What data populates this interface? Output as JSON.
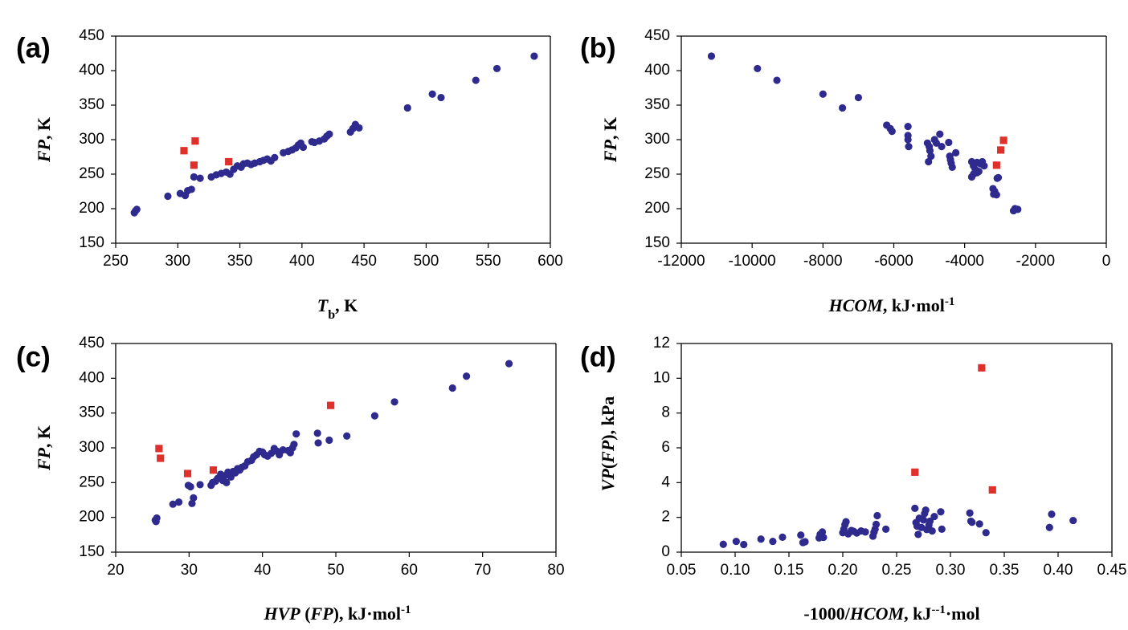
{
  "colors": {
    "circle": "#2e2a8e",
    "square": "#e0302b",
    "axis": "#000000"
  },
  "chart_data": [
    {
      "type": "scatter",
      "panel_label": "(a)",
      "xlabel": {
        "main": "T",
        "sub": "b",
        "rest": ", K"
      },
      "ylabel": {
        "italic": "FP",
        "rest": ", K"
      },
      "xlim": [
        250,
        600
      ],
      "ylim": [
        150,
        450
      ],
      "xticks": [
        "250",
        "300",
        "350",
        "400",
        "450",
        "500",
        "550",
        "600"
      ],
      "yticks": [
        "150",
        "200",
        "250",
        "300",
        "350",
        "400",
        "450"
      ],
      "series": [
        {
          "marker": "circle",
          "points": [
            [
              265,
              194
            ],
            [
              266,
              197
            ],
            [
              267,
              199
            ],
            [
              292,
              218
            ],
            [
              302,
              222
            ],
            [
              306,
              219
            ],
            [
              308,
              226
            ],
            [
              311,
              228
            ],
            [
              313,
              246
            ],
            [
              318,
              244
            ],
            [
              327,
              246
            ],
            [
              331,
              249
            ],
            [
              335,
              251
            ],
            [
              339,
              253
            ],
            [
              342,
              250
            ],
            [
              345,
              257
            ],
            [
              348,
              262
            ],
            [
              351,
              260
            ],
            [
              353,
              265
            ],
            [
              356,
              266
            ],
            [
              359,
              264
            ],
            [
              362,
              266
            ],
            [
              366,
              268
            ],
            [
              369,
              270
            ],
            [
              372,
              272
            ],
            [
              375,
              269
            ],
            [
              378,
              274
            ],
            [
              385,
              281
            ],
            [
              389,
              283
            ],
            [
              392,
              285
            ],
            [
              395,
              288
            ],
            [
              397,
              292
            ],
            [
              399,
              295
            ],
            [
              401,
              289
            ],
            [
              408,
              297
            ],
            [
              410,
              296
            ],
            [
              414,
              298
            ],
            [
              418,
              301
            ],
            [
              420,
              305
            ],
            [
              422,
              308
            ],
            [
              441,
              316
            ],
            [
              443,
              322
            ],
            [
              446,
              317
            ],
            [
              439,
              311
            ],
            [
              485,
              346
            ],
            [
              505,
              366
            ],
            [
              512,
              361
            ],
            [
              540,
              386
            ],
            [
              557,
              403
            ],
            [
              587,
              421
            ]
          ]
        },
        {
          "marker": "square",
          "points": [
            [
              305,
              284
            ],
            [
              314,
              298
            ],
            [
              313,
              263
            ],
            [
              341,
              268
            ]
          ]
        }
      ]
    },
    {
      "type": "scatter",
      "panel_label": "(b)",
      "xlabel": {
        "italic": "HCOM",
        "rest": ", kJ·mol",
        "sup": "-1"
      },
      "ylabel": {
        "italic": "FP",
        "rest": ", K"
      },
      "xlim": [
        -12000,
        0
      ],
      "ylim": [
        150,
        450
      ],
      "xticks": [
        "-12000",
        "-10000",
        "-8000",
        "-6000",
        "-4000",
        "-2000",
        "0"
      ],
      "yticks": [
        "150",
        "200",
        "250",
        "300",
        "350",
        "400",
        "450"
      ],
      "series": [
        {
          "marker": "circle",
          "points": [
            [
              -11150,
              421
            ],
            [
              -9850,
              403
            ],
            [
              -9300,
              386
            ],
            [
              -8000,
              366
            ],
            [
              -7450,
              346
            ],
            [
              -7000,
              361
            ],
            [
              -6200,
              321
            ],
            [
              -6100,
              316
            ],
            [
              -6050,
              312
            ],
            [
              -5600,
              319
            ],
            [
              -5600,
              306
            ],
            [
              -5600,
              300
            ],
            [
              -5580,
              290
            ],
            [
              -5050,
              295
            ],
            [
              -5000,
              290
            ],
            [
              -4980,
              284
            ],
            [
              -4950,
              276
            ],
            [
              -5020,
              268
            ],
            [
              -4850,
              300
            ],
            [
              -4800,
              295
            ],
            [
              -4700,
              308
            ],
            [
              -4650,
              290
            ],
            [
              -4450,
              296
            ],
            [
              -4400,
              271
            ],
            [
              -4380,
              266
            ],
            [
              -4350,
              260
            ],
            [
              -4250,
              281
            ],
            [
              -4420,
              276
            ],
            [
              -3800,
              268
            ],
            [
              -3750,
              262
            ],
            [
              -3700,
              257
            ],
            [
              -3650,
              252
            ],
            [
              -3800,
              246
            ],
            [
              -3750,
              250
            ],
            [
              -3650,
              267
            ],
            [
              -3550,
              265
            ],
            [
              -3500,
              268
            ],
            [
              -3450,
              262
            ],
            [
              -3600,
              254
            ],
            [
              -3200,
              229
            ],
            [
              -3150,
              225
            ],
            [
              -3180,
              221
            ],
            [
              -3100,
              220
            ],
            [
              -3080,
              244
            ],
            [
              -3050,
              245
            ],
            [
              -2620,
              197
            ],
            [
              -2580,
              200
            ],
            [
              -2500,
              199
            ]
          ]
        },
        {
          "marker": "square",
          "points": [
            [
              -2900,
              299
            ],
            [
              -2980,
              285
            ],
            [
              -3100,
              263
            ]
          ]
        }
      ]
    },
    {
      "type": "scatter",
      "panel_label": "(c)",
      "xlabel": {
        "italic": "HVP",
        "rest1": " (",
        "italic2": "FP",
        "rest": "), kJ·mol",
        "sup": "-1"
      },
      "ylabel": {
        "italic": "FP",
        "rest": ", K"
      },
      "xlim": [
        20,
        80
      ],
      "ylim": [
        150,
        450
      ],
      "xticks": [
        "20",
        "30",
        "40",
        "50",
        "60",
        "70",
        "80"
      ],
      "yticks": [
        "150",
        "200",
        "250",
        "300",
        "350",
        "400",
        "450"
      ],
      "series": [
        {
          "marker": "circle",
          "points": [
            [
              25.4,
              196
            ],
            [
              25.6,
              199
            ],
            [
              25.5,
              194
            ],
            [
              27.8,
              219
            ],
            [
              28.6,
              222
            ],
            [
              29.9,
              246
            ],
            [
              30.2,
              244
            ],
            [
              30.4,
              220
            ],
            [
              30.6,
              228
            ],
            [
              31.5,
              247
            ],
            [
              33.0,
              246
            ],
            [
              33.2,
              250
            ],
            [
              33.6,
              252
            ],
            [
              33.9,
              256
            ],
            [
              34.3,
              262
            ],
            [
              34.6,
              253
            ],
            [
              34.9,
              260
            ],
            [
              35.1,
              250
            ],
            [
              35.3,
              265
            ],
            [
              35.7,
              258
            ],
            [
              36.0,
              266
            ],
            [
              36.3,
              264
            ],
            [
              36.6,
              270
            ],
            [
              36.9,
              268
            ],
            [
              37.2,
              272
            ],
            [
              37.6,
              274
            ],
            [
              38.0,
              280
            ],
            [
              38.5,
              282
            ],
            [
              38.8,
              287
            ],
            [
              39.2,
              290
            ],
            [
              39.6,
              295
            ],
            [
              40.0,
              294
            ],
            [
              40.3,
              290
            ],
            [
              40.7,
              288
            ],
            [
              41.2,
              292
            ],
            [
              41.6,
              299
            ],
            [
              42.0,
              295
            ],
            [
              42.3,
              290
            ],
            [
              42.8,
              297
            ],
            [
              43.5,
              296
            ],
            [
              43.8,
              293
            ],
            [
              44.1,
              300
            ],
            [
              44.3,
              305
            ],
            [
              44.6,
              320
            ],
            [
              47.6,
              307
            ],
            [
              47.5,
              321
            ],
            [
              49.1,
              311
            ],
            [
              51.5,
              317
            ],
            [
              55.3,
              346
            ],
            [
              58.0,
              366
            ],
            [
              65.9,
              386
            ],
            [
              67.8,
              403
            ],
            [
              73.6,
              421
            ]
          ]
        },
        {
          "marker": "square",
          "points": [
            [
              25.9,
              299
            ],
            [
              26.1,
              285
            ],
            [
              29.8,
              263
            ],
            [
              33.3,
              268
            ],
            [
              49.3,
              361
            ]
          ]
        }
      ]
    },
    {
      "type": "scatter",
      "panel_label": "(d)",
      "xlabel": {
        "rest0": "-1000/",
        "italic": "HCOM",
        "rest": ", kJ",
        "sup": "--1",
        "rest2": "·mol"
      },
      "ylabel": {
        "italic": "VP",
        "rest1": "(",
        "italic2": "FP",
        "rest": "), kPa"
      },
      "xlim": [
        0.05,
        0.45
      ],
      "ylim": [
        0,
        12
      ],
      "xticks": [
        "0.05",
        "0.10",
        "0.15",
        "0.20",
        "0.25",
        "0.30",
        "0.35",
        "0.40",
        "0.45"
      ],
      "yticks": [
        "0",
        "2",
        "4",
        "6",
        "8",
        "10",
        "12"
      ],
      "series": [
        {
          "marker": "circle",
          "points": [
            [
              0.089,
              0.45
            ],
            [
              0.101,
              0.62
            ],
            [
              0.108,
              0.44
            ],
            [
              0.124,
              0.75
            ],
            [
              0.135,
              0.62
            ],
            [
              0.144,
              0.86
            ],
            [
              0.161,
              0.98
            ],
            [
              0.163,
              0.55
            ],
            [
              0.165,
              0.6
            ],
            [
              0.178,
              0.82
            ],
            [
              0.179,
              1.02
            ],
            [
              0.181,
              1.16
            ],
            [
              0.182,
              0.85
            ],
            [
              0.2,
              1.12
            ],
            [
              0.201,
              1.32
            ],
            [
              0.202,
              1.58
            ],
            [
              0.203,
              1.75
            ],
            [
              0.205,
              1.05
            ],
            [
              0.208,
              1.25
            ],
            [
              0.21,
              1.2
            ],
            [
              0.213,
              1.1
            ],
            [
              0.217,
              1.22
            ],
            [
              0.221,
              1.16
            ],
            [
              0.228,
              0.92
            ],
            [
              0.229,
              1.15
            ],
            [
              0.23,
              1.32
            ],
            [
              0.231,
              1.6
            ],
            [
              0.232,
              2.1
            ],
            [
              0.24,
              1.32
            ],
            [
              0.267,
              2.52
            ],
            [
              0.268,
              1.7
            ],
            [
              0.269,
              1.5
            ],
            [
              0.27,
              1.02
            ],
            [
              0.271,
              1.95
            ],
            [
              0.273,
              1.42
            ],
            [
              0.275,
              1.85
            ],
            [
              0.276,
              2.22
            ],
            [
              0.277,
              2.42
            ],
            [
              0.278,
              1.3
            ],
            [
              0.28,
              1.55
            ],
            [
              0.281,
              1.78
            ],
            [
              0.283,
              1.22
            ],
            [
              0.285,
              2.05
            ],
            [
              0.291,
              2.32
            ],
            [
              0.292,
              1.32
            ],
            [
              0.318,
              2.25
            ],
            [
              0.319,
              1.78
            ],
            [
              0.32,
              1.72
            ],
            [
              0.327,
              1.62
            ],
            [
              0.333,
              1.12
            ],
            [
              0.392,
              1.42
            ],
            [
              0.394,
              2.18
            ],
            [
              0.414,
              1.82
            ]
          ]
        },
        {
          "marker": "square",
          "points": [
            [
              0.267,
              4.6
            ],
            [
              0.329,
              10.6
            ],
            [
              0.339,
              3.58
            ]
          ]
        }
      ]
    }
  ]
}
